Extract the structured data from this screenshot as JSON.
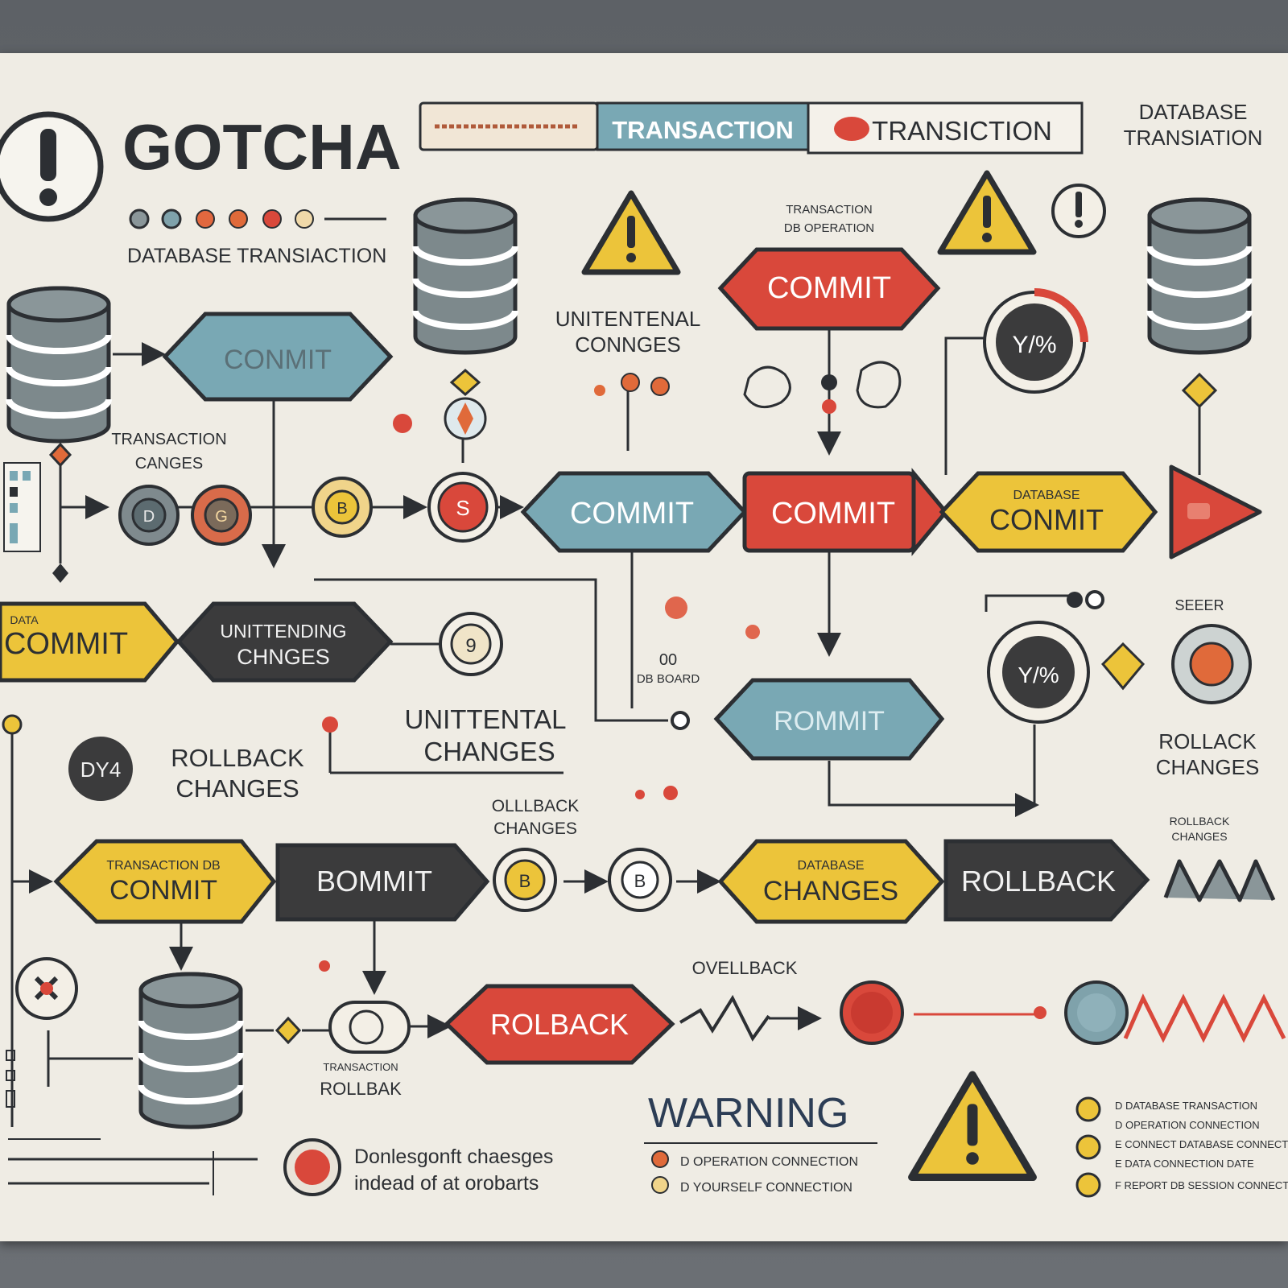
{
  "title": "GOTCHA",
  "subtitle": "DATABASE TRANSIACTION",
  "tabs": {
    "tab1": "",
    "tab2": "TRANSACTION",
    "tab3": "TRANSICTION",
    "corner_line1": "DATABASE",
    "corner_line2": "TRANSIATION"
  },
  "labels": {
    "commit_top_left": "CONMIT",
    "commit_top_center": "COMMIT",
    "unintentional_top_1": "UNITENTENAL",
    "unintentional_top_2": "CONNGES",
    "small_top_1": "TRANSACTION",
    "small_top_2": "DB OPERATION",
    "left_changes_1": "TRANSACTION",
    "left_changes_2": "CANGES",
    "node_1": "D",
    "node_2": "G",
    "node_3": "B",
    "node_4": "S",
    "commit_blue_mid": "COMMIT",
    "commit_red_mid": "COMMIT",
    "commit_yellow_mid": "CONMIT",
    "commit_yellow_mid_small": "DATABASE",
    "commit_yellow_left": "COMMIT",
    "commit_yellow_left_small": "DATA",
    "unintending_dark_1": "UNITTENDING",
    "unintending_dark_2": "CHNGES",
    "node_5": "9",
    "percent_1": "Y/%",
    "percent_2": "Y/%",
    "romit": "ROMMIT",
    "small_00": "00",
    "small_00b": "DB BOARD",
    "dy_badge": "DY4",
    "rollback_changes_left_1": "ROLLBACK",
    "rollback_changes_left_2": "CHANGES",
    "unintentional_mid_1": "UNITTENTAL",
    "unintentional_mid_2": "CHANGES",
    "ollback_small_1": "OLLLBACK",
    "ollback_small_2": "CHANGES",
    "rollback_changes_right_1": "ROLLACK",
    "rollback_changes_right_2": "CHANGES",
    "right_small_label": "SEEER",
    "right_small_2_1": "ROLLBACK",
    "right_small_2_2": "CHANGES",
    "commit_yellow_bottom": "CONMIT",
    "commit_yellow_bottom_small": "TRANSACTION DB",
    "bommit_dark": "BOMMIT",
    "node_6": "B",
    "node_7": "B",
    "changes_yellow": "CHANGES",
    "changes_yellow_small": "DATABASE",
    "rollback_dark": "ROLLBACK",
    "rollback_red": "ROLBACK",
    "overlback": "OVELLBACK",
    "rollbak_small": "ROLLBAK",
    "rollbak_small_top": "TRANSACTION",
    "warning": "WARNING",
    "bottom_text_1": "Donlesgonft chaesges",
    "bottom_text_2": "indead of at orobarts",
    "warn_item_1": "D OPERATION CONNECTION",
    "warn_item_2": "D YOURSELF CONNECTION",
    "legend_1": "D DATABASE TRANSACTION",
    "legend_2": "D OPERATION CONNECTION",
    "legend_3": "E CONNECT DATABASE CONNECTION",
    "legend_4": "E DATA CONNECTION DATE",
    "legend_5": "F REPORT DB SESSION CONNECTION"
  },
  "colors": {
    "red": "#d9483b",
    "blue": "#79a8b4",
    "yellow": "#ecc43a",
    "dark": "#3b3b3c",
    "gray": "#7f8a8e",
    "board": "#efece4",
    "ink": "#2c2f33"
  }
}
